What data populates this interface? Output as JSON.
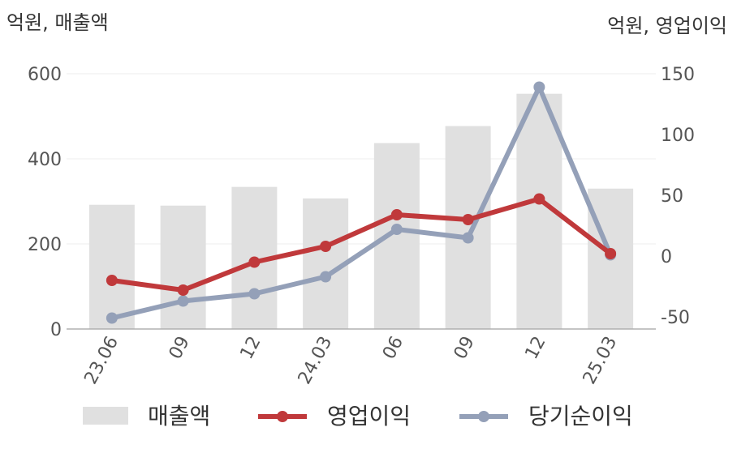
{
  "chart_data": {
    "type": "bar+line",
    "left_axis_title": "억원, 매출액",
    "right_axis_title": "억원, 영업이익",
    "categories": [
      "23.06",
      "09",
      "12",
      "24.03",
      "06",
      "09",
      "12",
      "25.03"
    ],
    "left_ylim": [
      0,
      600
    ],
    "left_ticks": [
      "0",
      "200",
      "400",
      "600"
    ],
    "left_tick_values": [
      0,
      200,
      400,
      600
    ],
    "right_ylim": [
      -60,
      150
    ],
    "right_ticks": [
      "-50",
      "0",
      "50",
      "100",
      "150"
    ],
    "right_tick_values": [
      -50,
      0,
      50,
      100,
      150
    ],
    "series": [
      {
        "name": "매출액",
        "type": "bar",
        "axis": "left",
        "color": "#e0e0e0",
        "values": [
          292,
          290,
          334,
          307,
          437,
          477,
          553,
          330
        ]
      },
      {
        "name": "영업이익",
        "type": "line",
        "axis": "right",
        "color": "#c0393b",
        "values": [
          -20,
          -28,
          -5,
          8,
          34,
          30,
          47,
          2
        ]
      },
      {
        "name": "당기순이익",
        "type": "line",
        "axis": "right",
        "color": "#94a0b8",
        "values": [
          -51,
          -37,
          -31,
          -17,
          22,
          15,
          139,
          1
        ]
      }
    ],
    "grid": true,
    "legend_position": "bottom"
  }
}
